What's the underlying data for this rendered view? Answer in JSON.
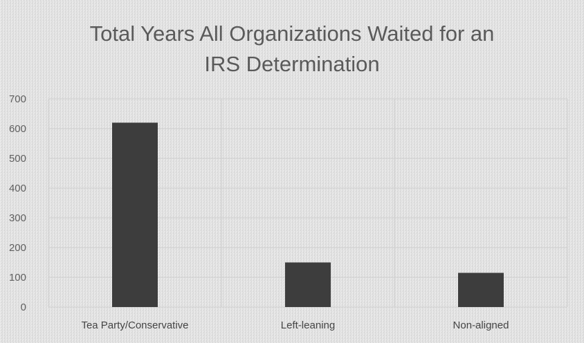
{
  "chart_data": {
    "type": "bar",
    "title_lines": [
      "Total Years All Organizations Waited for an",
      "IRS Determination"
    ],
    "categories": [
      "Tea Party/Conservative",
      "Left-leaning",
      "Non-aligned"
    ],
    "values": [
      620,
      150,
      115
    ],
    "ylim": [
      0,
      700
    ],
    "yticks": [
      "0",
      "100",
      "200",
      "300",
      "400",
      "500",
      "600",
      "700"
    ],
    "grid": true,
    "legend": "none",
    "colors": {
      "bar": "#3d3d3d",
      "grid": "#cfcfcf",
      "background": "#e2e2e2"
    }
  }
}
